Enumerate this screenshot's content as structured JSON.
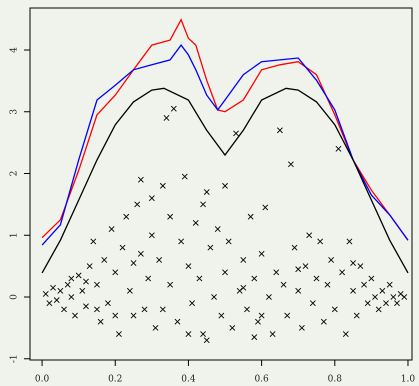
{
  "chart_data": {
    "type": "scatter",
    "xlim": [
      -0.033,
      1.011
    ],
    "ylim": [
      -1.02,
      4.68
    ],
    "xticks": [
      {
        "value": 0,
        "label": "0.0"
      },
      {
        "value": 0.2,
        "label": "0.2"
      },
      {
        "value": 0.4,
        "label": "0.4"
      },
      {
        "value": 0.6,
        "label": "0.6"
      },
      {
        "value": 0.8,
        "label": "0.8"
      },
      {
        "value": 1,
        "label": "1.0"
      }
    ],
    "yticks": [
      -1,
      0,
      1,
      2,
      3,
      4
    ],
    "series": [
      {
        "type": "scatter",
        "marker": "x",
        "color": "#000000",
        "x": [
          0.01,
          0.02,
          0.03,
          0.04,
          0.05,
          0.06,
          0.07,
          0.08,
          0.09,
          0.1,
          0.11,
          0.12,
          0.13,
          0.14,
          0.15,
          0.16,
          0.17,
          0.18,
          0.19,
          0.2,
          0.21,
          0.22,
          0.23,
          0.24,
          0.25,
          0.26,
          0.27,
          0.28,
          0.29,
          0.3,
          0.31,
          0.32,
          0.33,
          0.34,
          0.35,
          0.36,
          0.37,
          0.38,
          0.39,
          0.4,
          0.41,
          0.42,
          0.43,
          0.44,
          0.45,
          0.46,
          0.47,
          0.48,
          0.49,
          0.5,
          0.51,
          0.52,
          0.53,
          0.54,
          0.55,
          0.56,
          0.57,
          0.58,
          0.59,
          0.6,
          0.61,
          0.62,
          0.63,
          0.64,
          0.65,
          0.66,
          0.67,
          0.68,
          0.69,
          0.7,
          0.71,
          0.72,
          0.73,
          0.74,
          0.75,
          0.76,
          0.77,
          0.78,
          0.79,
          0.8,
          0.81,
          0.82,
          0.83,
          0.84,
          0.85,
          0.86,
          0.87,
          0.88,
          0.89,
          0.9,
          0.91,
          0.92,
          0.93,
          0.94,
          0.95,
          0.96,
          0.97,
          0.98,
          0.99,
          0.12,
          0.2,
          0.27,
          0.3,
          0.35,
          0.44,
          0.5,
          0.58,
          0.15,
          0.25,
          0.4,
          0.55,
          0.7,
          0.85,
          0.6,
          0.33,
          0.45,
          0.08
        ],
        "values": [
          0.05,
          -0.1,
          0.15,
          -0.05,
          0.1,
          -0.2,
          0.2,
          0.0,
          -0.3,
          0.35,
          0.1,
          -0.15,
          0.5,
          0.9,
          0.2,
          -0.4,
          0.6,
          -0.1,
          1.1,
          0.4,
          -0.6,
          0.8,
          1.3,
          0.1,
          -0.3,
          1.5,
          0.7,
          -0.2,
          0.3,
          1.0,
          -0.5,
          0.6,
          1.8,
          2.9,
          0.2,
          3.05,
          -0.4,
          0.9,
          1.95,
          0.5,
          -0.1,
          1.2,
          0.3,
          -0.6,
          1.7,
          0.8,
          0.0,
          1.1,
          -0.3,
          0.4,
          0.9,
          -0.5,
          2.65,
          0.1,
          0.6,
          -0.2,
          1.3,
          0.3,
          -0.4,
          0.7,
          1.45,
          0.0,
          -0.6,
          0.4,
          2.7,
          0.2,
          -0.3,
          2.15,
          0.8,
          0.1,
          -0.5,
          0.5,
          1.0,
          -0.1,
          0.3,
          0.9,
          -0.4,
          0.2,
          0.6,
          -0.2,
          2.4,
          0.4,
          -0.6,
          0.9,
          0.1,
          -0.3,
          0.5,
          0.2,
          -0.1,
          0.3,
          0.0,
          -0.2,
          0.1,
          -0.1,
          0.2,
          0.0,
          -0.1,
          0.05,
          0.0,
          0.25,
          -0.3,
          1.9,
          1.6,
          1.3,
          1.5,
          1.8,
          -0.65,
          -0.2,
          0.55,
          -0.6,
          0.15,
          0.45,
          0.55,
          -0.3,
          -0.2,
          -0.7,
          0.3
        ]
      },
      {
        "type": "line",
        "color": "#ff0000",
        "x": [
          0,
          0.05,
          0.1,
          0.15,
          0.2,
          0.25,
          0.3,
          0.35,
          0.38,
          0.4,
          0.42,
          0.45,
          0.48,
          0.5,
          0.55,
          0.6,
          0.65,
          0.7,
          0.75,
          0.8,
          0.85,
          0.9,
          0.95,
          1
        ],
        "values": [
          0.96,
          1.25,
          2.05,
          2.95,
          3.27,
          3.68,
          4.08,
          4.16,
          4.49,
          4.19,
          4.08,
          3.51,
          3.03,
          3.0,
          3.19,
          3.68,
          3.76,
          3.81,
          3.6,
          2.95,
          2.22,
          1.73,
          1.33,
          0.92
        ]
      },
      {
        "type": "line",
        "color": "#0000ff",
        "x": [
          0,
          0.05,
          0.1,
          0.15,
          0.2,
          0.25,
          0.3,
          0.35,
          0.38,
          0.4,
          0.42,
          0.45,
          0.48,
          0.5,
          0.55,
          0.6,
          0.65,
          0.7,
          0.75,
          0.8,
          0.85,
          0.9,
          0.95,
          1
        ],
        "values": [
          0.84,
          1.17,
          2.22,
          3.19,
          3.43,
          3.68,
          3.76,
          3.84,
          4.08,
          3.92,
          3.68,
          3.27,
          3.03,
          3.19,
          3.6,
          3.81,
          3.84,
          3.87,
          3.51,
          3.03,
          2.22,
          1.65,
          1.33,
          0.92
        ]
      },
      {
        "type": "line",
        "color": "#000000",
        "x": [
          0,
          0.05,
          0.1,
          0.15,
          0.2,
          0.25,
          0.3,
          0.333,
          0.4,
          0.45,
          0.5,
          0.55,
          0.6,
          0.667,
          0.7,
          0.75,
          0.8,
          0.85,
          0.9,
          0.95,
          1
        ],
        "values": [
          0.39,
          0.92,
          1.57,
          2.22,
          2.79,
          3.16,
          3.35,
          3.38,
          3.19,
          2.7,
          2.3,
          2.7,
          3.19,
          3.38,
          3.35,
          3.16,
          2.79,
          2.22,
          1.57,
          0.92,
          0.39
        ]
      }
    ]
  }
}
